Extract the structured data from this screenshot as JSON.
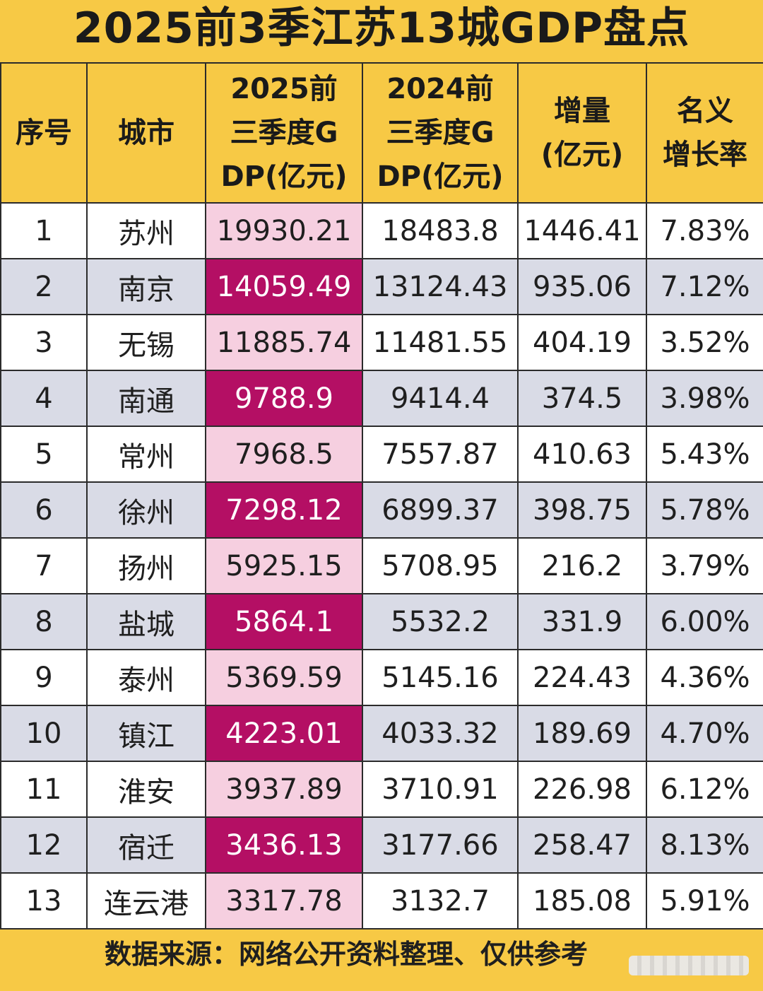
{
  "title": "2025前3季江苏13城GDP盘点",
  "headers": {
    "rank": "序号",
    "city": "城市",
    "gdp2025": [
      "2025前",
      "三季度G",
      "DP(亿元)"
    ],
    "gdp2024": [
      "2024前",
      "三季度G",
      "DP(亿元)"
    ],
    "increase": [
      "增量",
      "(亿元)"
    ],
    "growth": [
      "名义",
      "增长率"
    ]
  },
  "rows": [
    {
      "rank": "1",
      "city": "苏州",
      "gdp2025": "19930.21",
      "gdp2024": "18483.8",
      "increase": "1446.41",
      "growth": "7.83%"
    },
    {
      "rank": "2",
      "city": "南京",
      "gdp2025": "14059.49",
      "gdp2024": "13124.43",
      "increase": "935.06",
      "growth": "7.12%"
    },
    {
      "rank": "3",
      "city": "无锡",
      "gdp2025": "11885.74",
      "gdp2024": "11481.55",
      "increase": "404.19",
      "growth": "3.52%"
    },
    {
      "rank": "4",
      "city": "南通",
      "gdp2025": "9788.9",
      "gdp2024": "9414.4",
      "increase": "374.5",
      "growth": "3.98%"
    },
    {
      "rank": "5",
      "city": "常州",
      "gdp2025": "7968.5",
      "gdp2024": "7557.87",
      "increase": "410.63",
      "growth": "5.43%"
    },
    {
      "rank": "6",
      "city": "徐州",
      "gdp2025": "7298.12",
      "gdp2024": "6899.37",
      "increase": "398.75",
      "growth": "5.78%"
    },
    {
      "rank": "7",
      "city": "扬州",
      "gdp2025": "5925.15",
      "gdp2024": "5708.95",
      "increase": "216.2",
      "growth": "3.79%"
    },
    {
      "rank": "8",
      "city": "盐城",
      "gdp2025": "5864.1",
      "gdp2024": "5532.2",
      "increase": "331.9",
      "growth": "6.00%"
    },
    {
      "rank": "9",
      "city": "泰州",
      "gdp2025": "5369.59",
      "gdp2024": "5145.16",
      "increase": "224.43",
      "growth": "4.36%"
    },
    {
      "rank": "10",
      "city": "镇江",
      "gdp2025": "4223.01",
      "gdp2024": "4033.32",
      "increase": "189.69",
      "growth": "4.70%"
    },
    {
      "rank": "11",
      "city": "淮安",
      "gdp2025": "3937.89",
      "gdp2024": "3710.91",
      "increase": "226.98",
      "growth": "6.12%"
    },
    {
      "rank": "12",
      "city": "宿迁",
      "gdp2025": "3436.13",
      "gdp2024": "3177.66",
      "increase": "258.47",
      "growth": "8.13%"
    },
    {
      "rank": "13",
      "city": "连云港",
      "gdp2025": "3317.78",
      "gdp2024": "3132.7",
      "increase": "185.08",
      "growth": "5.91%"
    }
  ],
  "footer": "数据来源：网络公开资料整理、仅供参考",
  "colors": {
    "background": "#f7c945",
    "highlight": "#b40f64",
    "highlight_light": "#f6cfe0",
    "row_alt": "#d9dbe6"
  }
}
